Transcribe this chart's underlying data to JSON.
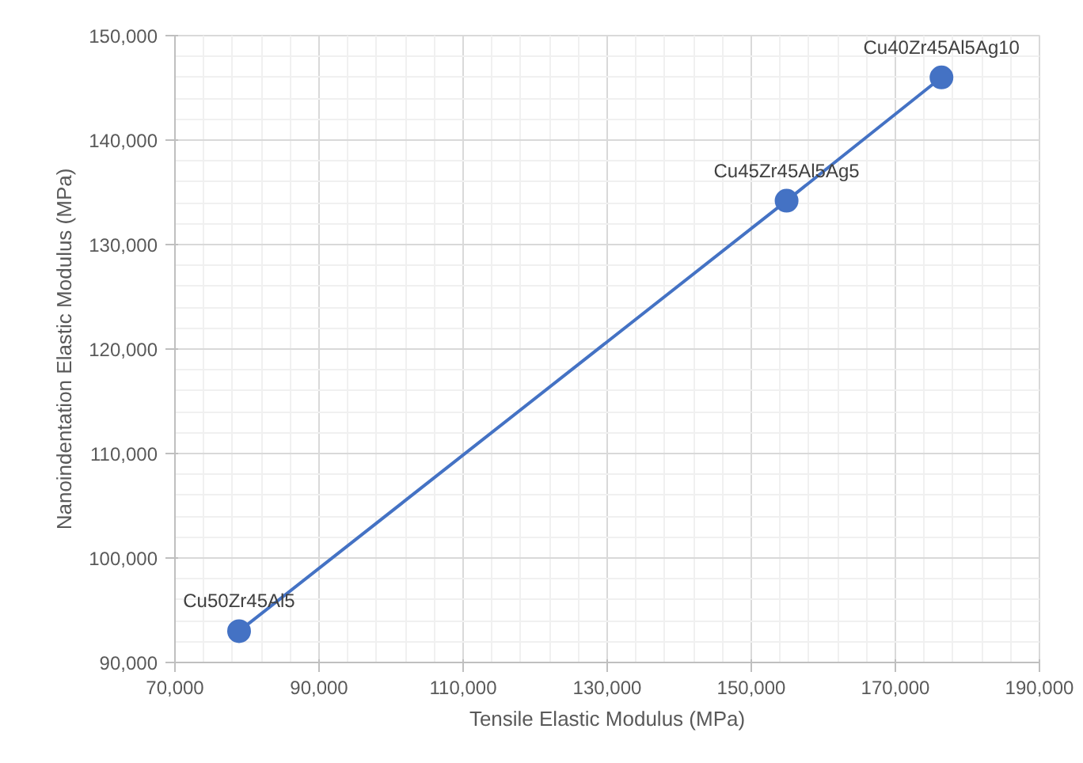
{
  "chart_data": {
    "type": "line",
    "xlabel": "Tensile Elastic Modulus (MPa)",
    "ylabel": "Nanoindentation Elastic Modulus (MPa)",
    "x": [
      78900,
      154900,
      176400
    ],
    "series": [
      {
        "color": "#4472c4",
        "values": [
          93000,
          134200,
          146000
        ]
      }
    ],
    "marker": "circle",
    "line_style": "solid",
    "grid": true,
    "xlim": [
      70000,
      190000
    ],
    "ylim": [
      90000,
      150000
    ],
    "xticks": [
      {
        "value": 70000,
        "label": "70,000"
      },
      {
        "value": 90000,
        "label": "90,000"
      },
      {
        "value": 110000,
        "label": "110,000"
      },
      {
        "value": 130000,
        "label": "130,000"
      },
      {
        "value": 150000,
        "label": "150,000"
      },
      {
        "value": 170000,
        "label": "170,000"
      },
      {
        "value": 190000,
        "label": "190,000"
      }
    ],
    "yticks": [
      {
        "value": 90000,
        "label": "90,000"
      },
      {
        "value": 100000,
        "label": "100,000"
      },
      {
        "value": 110000,
        "label": "110,000"
      },
      {
        "value": 120000,
        "label": "120,000"
      },
      {
        "value": 130000,
        "label": "130,000"
      },
      {
        "value": 140000,
        "label": "140,000"
      },
      {
        "value": 150000,
        "label": "150,000"
      }
    ],
    "annotations": [
      {
        "text": "Cu50Zr45Al5",
        "x": 78900,
        "y": 93000
      },
      {
        "text": "Cu45Zr45Al5Ag5",
        "x": 154900,
        "y": 134200
      },
      {
        "text": "Cu40Zr45Al5Ag10",
        "x": 176400,
        "y": 146000
      }
    ]
  }
}
